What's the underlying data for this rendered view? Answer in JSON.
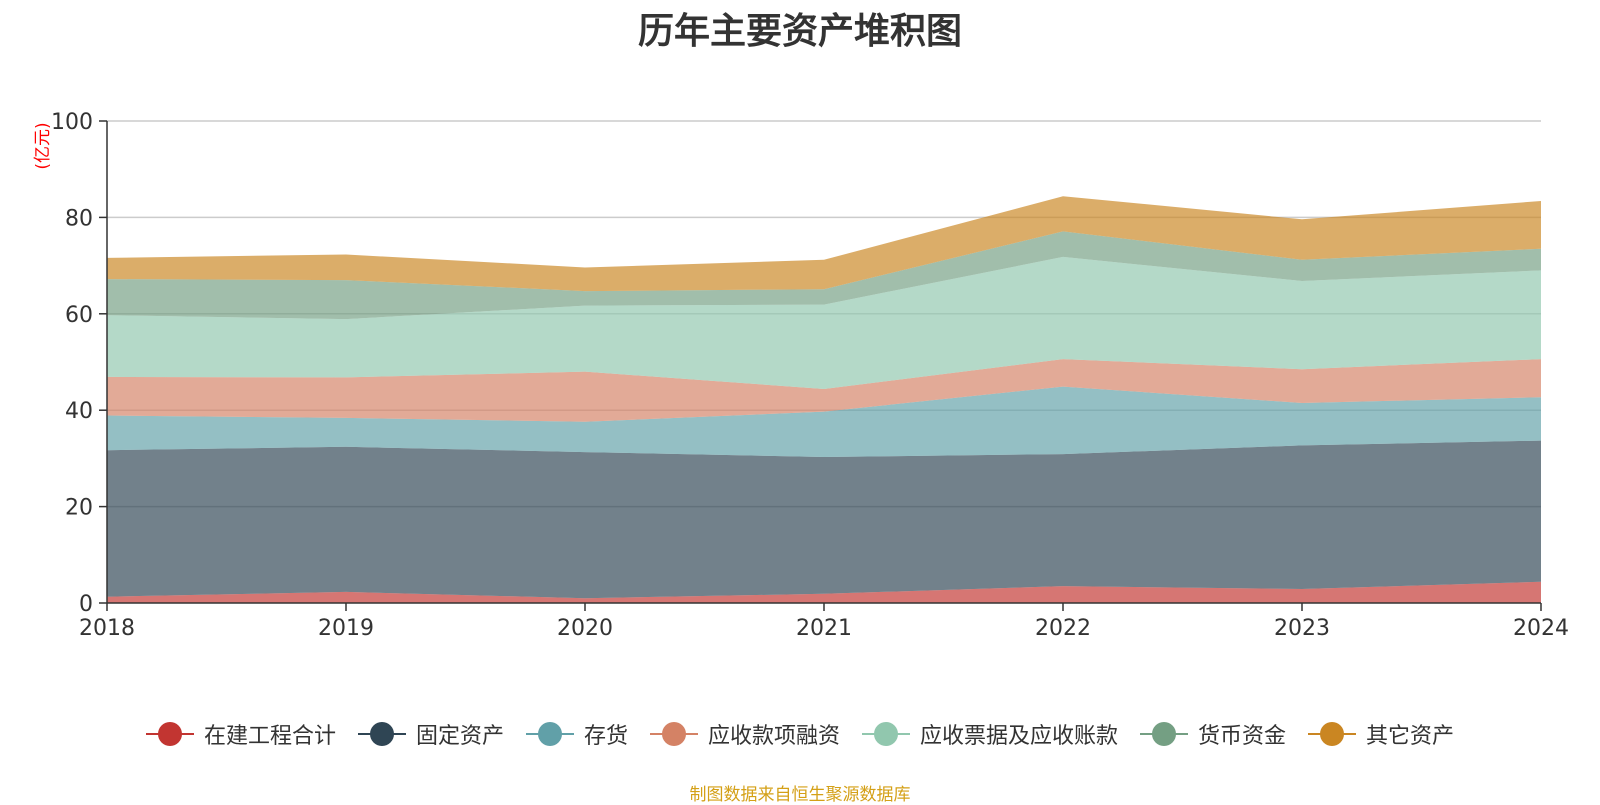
{
  "chart_data": {
    "type": "area",
    "stacked": true,
    "title": "历年主要资产堆积图",
    "ylabel": "(亿元)",
    "x": [
      "2018",
      "2019",
      "2020",
      "2021",
      "2022",
      "2023",
      "2024"
    ],
    "ylim": [
      0,
      100
    ],
    "yticks": [
      0,
      20,
      40,
      60,
      80,
      100
    ],
    "grid": true,
    "legend_position": "bottom",
    "source": "制图数据来自恒生聚源数据库",
    "series": [
      {
        "name": "在建工程合计",
        "color": "#c23531",
        "values": [
          1.3,
          2.3,
          1.0,
          1.9,
          3.5,
          2.9,
          4.4
        ]
      },
      {
        "name": "固定资产",
        "color": "#2f4554",
        "values": [
          30.4,
          30.1,
          30.3,
          28.4,
          27.4,
          29.8,
          29.3
        ]
      },
      {
        "name": "存货",
        "color": "#61a0a8",
        "values": [
          7.2,
          6.0,
          6.3,
          9.4,
          14.0,
          8.8,
          9.0
        ]
      },
      {
        "name": "应收款项融资",
        "color": "#d48265",
        "values": [
          8.0,
          8.4,
          10.4,
          4.7,
          5.7,
          7.0,
          7.9
        ]
      },
      {
        "name": "应收票据及应收账款",
        "color": "#91c7ae",
        "values": [
          12.8,
          12.1,
          13.7,
          17.5,
          21.2,
          18.3,
          18.4
        ]
      },
      {
        "name": "货币资金",
        "color": "#749f83",
        "values": [
          7.5,
          8.1,
          3.0,
          3.2,
          5.3,
          4.4,
          4.5
        ]
      },
      {
        "name": "其它资产",
        "color": "#ca8622",
        "values": [
          4.4,
          5.3,
          4.9,
          6.1,
          7.3,
          8.4,
          9.9
        ]
      }
    ]
  }
}
